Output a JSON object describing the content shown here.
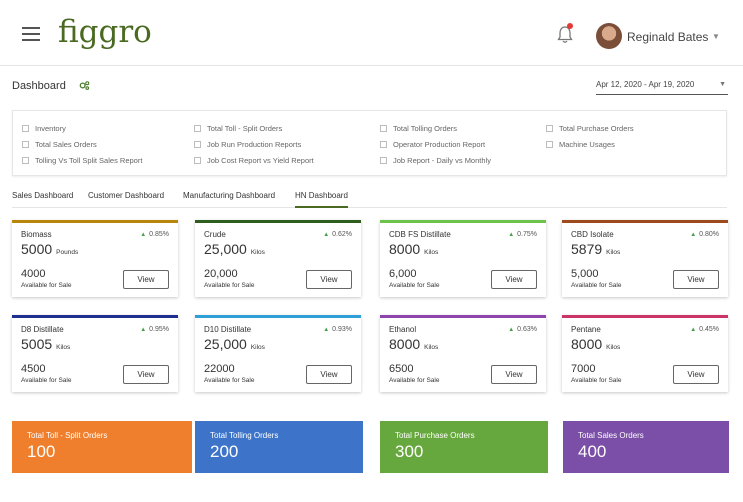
{
  "app": {
    "logo": "figgro"
  },
  "user": {
    "name": "Reginald Bates"
  },
  "header": {
    "title": "Dashboard",
    "date_range": "Apr 12, 2020 - Apr 19, 2020"
  },
  "filters": [
    "Inventory",
    "Total Sales Orders",
    "Tolling Vs Toll Split Sales Report",
    "Total Toll - Split Orders",
    "Job Run Production Reports",
    "Job Cost Report vs Yield Report",
    "Total Tolling Orders",
    "Operator Production Report",
    "Job Report - Daily vs Monthly",
    "Total Purchase Orders",
    "Machine Usages"
  ],
  "tabs": [
    "Sales Dashboard",
    "Customer Dashboard",
    "Manufacturing Dashboard",
    "HN Dashboard"
  ],
  "active_tab": "HN Dashboard",
  "cards": [
    {
      "name": "Biomass",
      "pct": "0.85%",
      "value": "5000",
      "unit": "Pounds",
      "avail": "4000",
      "avail_label": "Available for Sale",
      "view": "View",
      "color": "#b8860b"
    },
    {
      "name": "Crude",
      "pct": "0.62%",
      "value": "25,000",
      "unit": "Kilos",
      "avail": "20,000",
      "avail_label": "Available for Sale",
      "view": "View",
      "color": "#2e5e1e"
    },
    {
      "name": "CDB FS Distillate",
      "pct": "0.75%",
      "value": "8000",
      "unit": "Kilos",
      "avail": "6,000",
      "avail_label": "Available for Sale",
      "view": "View",
      "color": "#6cc24a"
    },
    {
      "name": "CBD Isolate",
      "pct": "0.80%",
      "value": "5879",
      "unit": "Kilos",
      "avail": "5,000",
      "avail_label": "Available for Sale",
      "view": "View",
      "color": "#9c4a1e"
    },
    {
      "name": "D8 Distillate",
      "pct": "0.95%",
      "value": "5005",
      "unit": "Kilos",
      "avail": "4500",
      "avail_label": "Available for Sale",
      "view": "View",
      "color": "#1f2f8f"
    },
    {
      "name": "D10 Distillate",
      "pct": "0.93%",
      "value": "25,000",
      "unit": "Kilos",
      "avail": "22000",
      "avail_label": "Available for Sale",
      "view": "View",
      "color": "#2f9fd8"
    },
    {
      "name": "Ethanol",
      "pct": "0.63%",
      "value": "8000",
      "unit": "Kilos",
      "avail": "6500",
      "avail_label": "Available for Sale",
      "view": "View",
      "color": "#8e44ad"
    },
    {
      "name": "Pentane",
      "pct": "0.45%",
      "value": "8000",
      "unit": "Kilos",
      "avail": "7000",
      "avail_label": "Available for Sale",
      "view": "View",
      "color": "#cc3366"
    }
  ],
  "tiles": [
    {
      "label": "Total Toll - Split Orders",
      "value": "100",
      "color": "#f07f2d"
    },
    {
      "label": "Total Tolling Orders",
      "value": "200",
      "color": "#3d74c9"
    },
    {
      "label": "Total Purchase Orders",
      "value": "300",
      "color": "#67a83e"
    },
    {
      "label": "Total Sales Orders",
      "value": "400",
      "color": "#7b4ea8"
    }
  ]
}
